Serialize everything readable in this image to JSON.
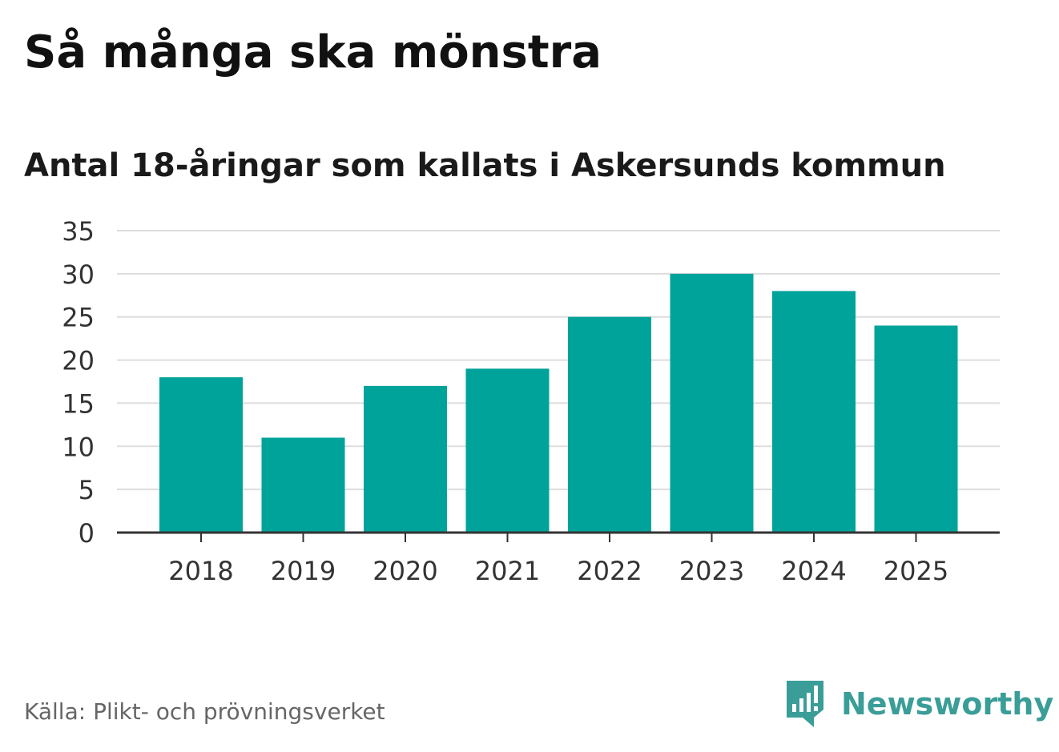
{
  "title": "Så många ska mönstra",
  "chart_data": {
    "type": "bar",
    "title": "Antal 18-åringar som kallats i Askersunds kommun",
    "categories": [
      "2018",
      "2019",
      "2020",
      "2021",
      "2022",
      "2023",
      "2024",
      "2025"
    ],
    "values": [
      18,
      11,
      17,
      19,
      25,
      30,
      28,
      24
    ],
    "yticks": [
      0,
      5,
      10,
      15,
      20,
      25,
      30,
      35
    ],
    "ylim": [
      0,
      35
    ],
    "xlabel": "",
    "ylabel": "",
    "grid": true,
    "bar_color": "#00a39a"
  },
  "source": "Källa: Plikt- och prövningsverket",
  "logo": {
    "text": "Newsworthy",
    "icon": "newsworthy-chat-bars-icon",
    "color": "#3a9d98"
  }
}
